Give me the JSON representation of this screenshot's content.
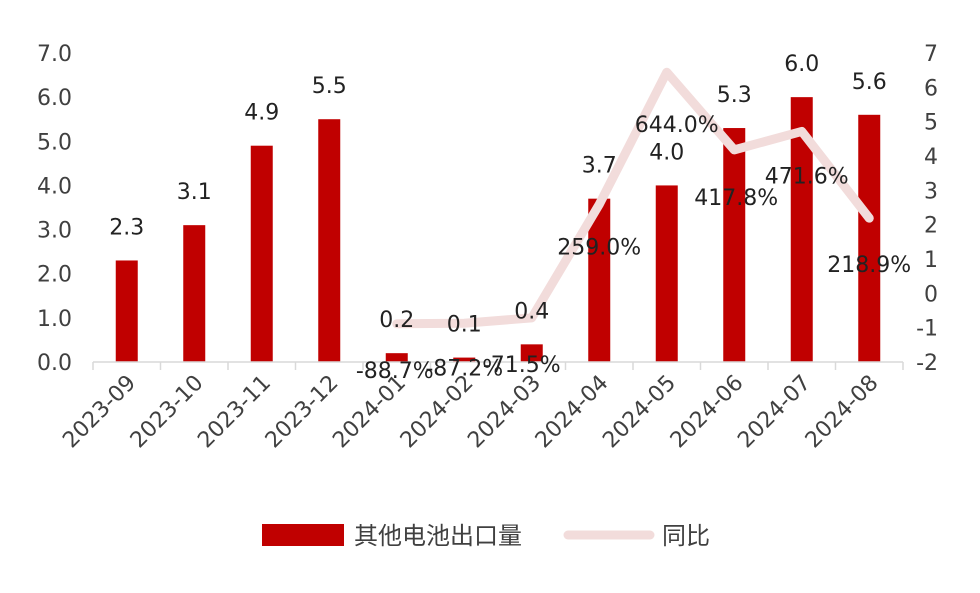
{
  "chart_data": {
    "type": "bar",
    "categories": [
      "2023-09",
      "2023-10",
      "2023-11",
      "2023-12",
      "2024-01",
      "2024-02",
      "2024-03",
      "2024-04",
      "2024-05",
      "2024-06",
      "2024-07",
      "2024-08"
    ],
    "series": [
      {
        "name": "其他电池出口量",
        "type": "bar",
        "axis": "left",
        "values": [
          2.3,
          3.1,
          4.9,
          5.5,
          0.2,
          0.1,
          0.4,
          3.7,
          4.0,
          5.3,
          6.0,
          5.6
        ],
        "labels": [
          "2.3",
          "3.1",
          "4.9",
          "5.5",
          "0.2",
          "0.1",
          "0.4",
          "3.7",
          "4.0",
          "5.3",
          "6.0",
          "5.6"
        ],
        "color": "#C00000"
      },
      {
        "name": "同比",
        "type": "line",
        "axis": "right",
        "values": [
          null,
          null,
          null,
          null,
          -0.887,
          -0.872,
          -0.715,
          2.59,
          6.44,
          4.178,
          4.716,
          2.189
        ],
        "labels": [
          "",
          "",
          "",
          "",
          "-88.7%",
          "-87.2%",
          "-71.5%",
          "259.0%",
          "644.0%",
          "417.8%",
          "471.6%",
          "218.9%"
        ],
        "color": "#F2DCDB"
      }
    ],
    "left_axis": {
      "ylim": [
        0,
        7
      ],
      "ticks": [
        "0.0",
        "1.0",
        "2.0",
        "3.0",
        "4.0",
        "5.0",
        "6.0",
        "7.0"
      ]
    },
    "right_axis": {
      "ylim": [
        -2,
        7
      ],
      "ticks": [
        "-2",
        "-1",
        "0",
        "1",
        "2",
        "3",
        "4",
        "5",
        "6",
        "7"
      ]
    },
    "grid": false,
    "legend_position": "bottom"
  }
}
